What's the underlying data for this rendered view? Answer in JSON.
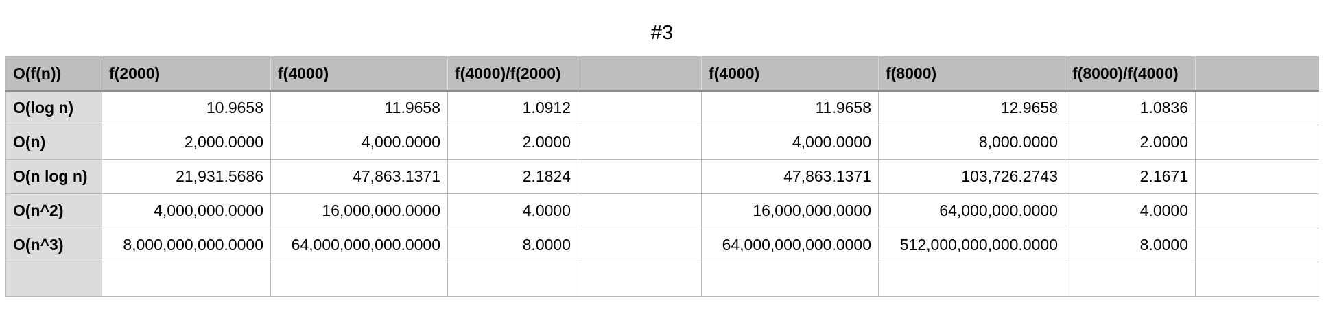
{
  "title": "#3",
  "table": {
    "headers": [
      "O(f(n))",
      "f(2000)",
      "f(4000)",
      "f(4000)/f(2000)",
      "",
      "f(4000)",
      "f(8000)",
      "f(8000)/f(4000)",
      ""
    ],
    "rows": [
      [
        "O(log n)",
        "10.9658",
        "11.9658",
        "1.0912",
        "",
        "11.9658",
        "12.9658",
        "1.0836",
        ""
      ],
      [
        "O(n)",
        "2,000.0000",
        "4,000.0000",
        "2.0000",
        "",
        "4,000.0000",
        "8,000.0000",
        "2.0000",
        ""
      ],
      [
        "O(n log n)",
        "21,931.5686",
        "47,863.1371",
        "2.1824",
        "",
        "47,863.1371",
        "103,726.2743",
        "2.1671",
        ""
      ],
      [
        "O(n^2)",
        "4,000,000.0000",
        "16,000,000.0000",
        "4.0000",
        "",
        "16,000,000.0000",
        "64,000,000.0000",
        "4.0000",
        ""
      ],
      [
        "O(n^3)",
        "8,000,000,000.0000",
        "64,000,000,000.0000",
        "8.0000",
        "",
        "64,000,000,000.0000",
        "512,000,000,000.0000",
        "8.0000",
        ""
      ],
      [
        "",
        "",
        "",
        "",
        "",
        "",
        "",
        "",
        ""
      ]
    ]
  }
}
